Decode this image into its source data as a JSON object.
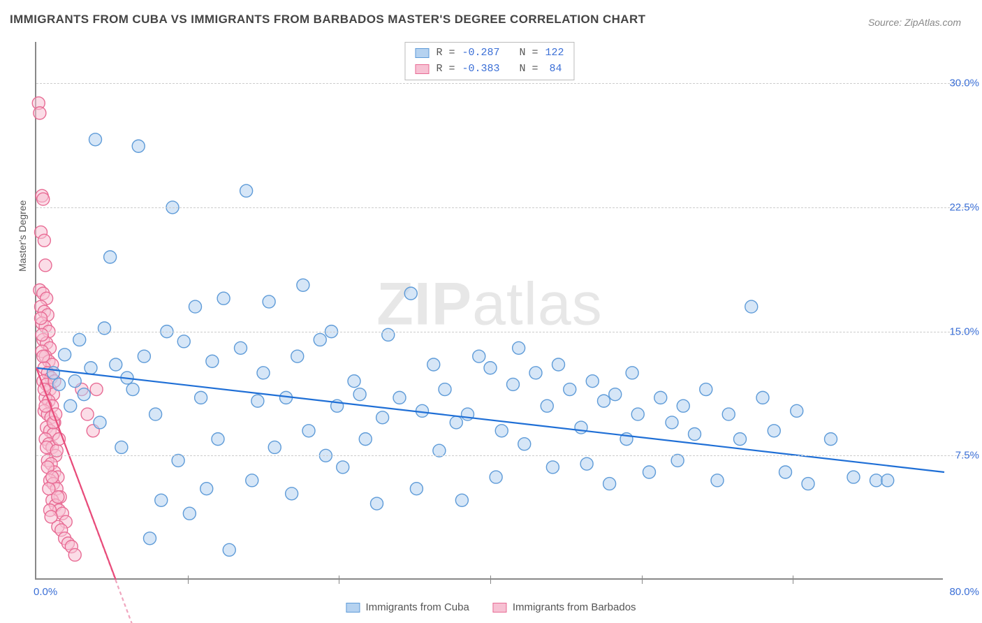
{
  "title": "IMMIGRANTS FROM CUBA VS IMMIGRANTS FROM BARBADOS MASTER'S DEGREE CORRELATION CHART",
  "source_label": "Source: ",
  "source_name": "ZipAtlas.com",
  "watermark": "ZIPatlas",
  "ylabel": "Master's Degree",
  "chart": {
    "type": "scatter",
    "xlim": [
      0,
      80
    ],
    "ylim": [
      0,
      32.5
    ],
    "x_ticks": [
      0,
      80
    ],
    "x_tick_labels": [
      "0.0%",
      "80.0%"
    ],
    "x_minor_ticks": [
      13.33,
      26.67,
      40,
      53.33,
      66.67
    ],
    "y_ticks": [
      7.5,
      15.0,
      22.5,
      30.0
    ],
    "y_tick_labels": [
      "7.5%",
      "15.0%",
      "22.5%",
      "30.0%"
    ],
    "grid_color": "#cccccc",
    "axis_color": "#888888",
    "background_color": "#ffffff",
    "label_color": "#3b6fd6",
    "marker_radius": 9,
    "marker_stroke_width": 1.4,
    "trend_line_width": 2.2
  },
  "series": [
    {
      "name": "Immigrants from Cuba",
      "fill": "#b5d2f0",
      "stroke": "#5e9bd8",
      "fill_opacity": 0.55,
      "trend": {
        "x1": 0,
        "y1": 12.8,
        "x2": 80,
        "y2": 6.5,
        "color": "#1f6fd6",
        "dash": ""
      },
      "R_label": "R = ",
      "R": "-0.287",
      "N_label": "N = ",
      "N": "122",
      "points": [
        [
          1.5,
          12.5
        ],
        [
          2.0,
          11.8
        ],
        [
          2.5,
          13.6
        ],
        [
          3.0,
          10.5
        ],
        [
          3.4,
          12.0
        ],
        [
          3.8,
          14.5
        ],
        [
          4.2,
          11.2
        ],
        [
          4.8,
          12.8
        ],
        [
          5.2,
          26.6
        ],
        [
          5.6,
          9.5
        ],
        [
          6.0,
          15.2
        ],
        [
          6.5,
          19.5
        ],
        [
          7.0,
          13.0
        ],
        [
          7.5,
          8.0
        ],
        [
          8.0,
          12.2
        ],
        [
          8.5,
          11.5
        ],
        [
          9.0,
          26.2
        ],
        [
          9.5,
          13.5
        ],
        [
          10.0,
          2.5
        ],
        [
          10.5,
          10.0
        ],
        [
          11.0,
          4.8
        ],
        [
          11.5,
          15.0
        ],
        [
          12.0,
          22.5
        ],
        [
          12.5,
          7.2
        ],
        [
          13.0,
          14.4
        ],
        [
          13.5,
          4.0
        ],
        [
          14.0,
          16.5
        ],
        [
          14.5,
          11.0
        ],
        [
          15.0,
          5.5
        ],
        [
          15.5,
          13.2
        ],
        [
          16.0,
          8.5
        ],
        [
          16.5,
          17.0
        ],
        [
          17.0,
          1.8
        ],
        [
          18.0,
          14.0
        ],
        [
          18.5,
          23.5
        ],
        [
          19.0,
          6.0
        ],
        [
          19.5,
          10.8
        ],
        [
          20.0,
          12.5
        ],
        [
          20.5,
          16.8
        ],
        [
          21.0,
          8.0
        ],
        [
          22.0,
          11.0
        ],
        [
          22.5,
          5.2
        ],
        [
          23.0,
          13.5
        ],
        [
          23.5,
          17.8
        ],
        [
          24.0,
          9.0
        ],
        [
          25.0,
          14.5
        ],
        [
          25.5,
          7.5
        ],
        [
          26.0,
          15.0
        ],
        [
          26.5,
          10.5
        ],
        [
          27.0,
          6.8
        ],
        [
          28.0,
          12.0
        ],
        [
          28.5,
          11.2
        ],
        [
          29.0,
          8.5
        ],
        [
          30.0,
          4.6
        ],
        [
          30.5,
          9.8
        ],
        [
          31.0,
          14.8
        ],
        [
          32.0,
          11.0
        ],
        [
          33.0,
          17.3
        ],
        [
          33.5,
          5.5
        ],
        [
          34.0,
          10.2
        ],
        [
          35.0,
          13.0
        ],
        [
          35.5,
          7.8
        ],
        [
          36.0,
          11.5
        ],
        [
          37.0,
          9.5
        ],
        [
          37.5,
          4.8
        ],
        [
          38.0,
          10.0
        ],
        [
          39.0,
          13.5
        ],
        [
          40.0,
          12.8
        ],
        [
          40.5,
          6.2
        ],
        [
          41.0,
          9.0
        ],
        [
          42.0,
          11.8
        ],
        [
          42.5,
          14.0
        ],
        [
          43.0,
          8.2
        ],
        [
          44.0,
          12.5
        ],
        [
          45.0,
          10.5
        ],
        [
          45.5,
          6.8
        ],
        [
          46.0,
          13.0
        ],
        [
          47.0,
          11.5
        ],
        [
          48.0,
          9.2
        ],
        [
          48.5,
          7.0
        ],
        [
          49.0,
          12.0
        ],
        [
          50.0,
          10.8
        ],
        [
          50.5,
          5.8
        ],
        [
          51.0,
          11.2
        ],
        [
          52.0,
          8.5
        ],
        [
          52.5,
          12.5
        ],
        [
          53.0,
          10.0
        ],
        [
          54.0,
          6.5
        ],
        [
          55.0,
          11.0
        ],
        [
          56.0,
          9.5
        ],
        [
          56.5,
          7.2
        ],
        [
          57.0,
          10.5
        ],
        [
          58.0,
          8.8
        ],
        [
          59.0,
          11.5
        ],
        [
          60.0,
          6.0
        ],
        [
          61.0,
          10.0
        ],
        [
          62.0,
          8.5
        ],
        [
          63.0,
          16.5
        ],
        [
          64.0,
          11.0
        ],
        [
          65.0,
          9.0
        ],
        [
          66.0,
          6.5
        ],
        [
          67.0,
          10.2
        ],
        [
          68.0,
          5.8
        ],
        [
          70.0,
          8.5
        ],
        [
          72.0,
          6.2
        ],
        [
          74.0,
          6.0
        ],
        [
          75.0,
          6.0
        ]
      ]
    },
    {
      "name": "Immigrants from Barbados",
      "fill": "#f7c1d3",
      "stroke": "#e86b94",
      "fill_opacity": 0.55,
      "trend": {
        "x1": 0,
        "y1": 12.8,
        "x2": 7,
        "y2": 0,
        "color": "#e84b7a",
        "dash": ""
      },
      "trend_ext": {
        "x1": 0,
        "y1": 12.8,
        "x2": 8.5,
        "y2": -2.8,
        "color": "#f0a5be",
        "dash": "5,4"
      },
      "R_label": "R = ",
      "R": "-0.383",
      "N_label": "N = ",
      "N": "84",
      "points": [
        [
          0.2,
          28.8
        ],
        [
          0.3,
          28.2
        ],
        [
          0.5,
          23.2
        ],
        [
          0.6,
          23.0
        ],
        [
          0.4,
          21.0
        ],
        [
          0.7,
          20.5
        ],
        [
          0.8,
          19.0
        ],
        [
          0.3,
          17.5
        ],
        [
          0.6,
          17.3
        ],
        [
          0.9,
          17.0
        ],
        [
          0.4,
          16.5
        ],
        [
          0.7,
          16.2
        ],
        [
          1.0,
          16.0
        ],
        [
          0.5,
          15.5
        ],
        [
          0.8,
          15.3
        ],
        [
          1.1,
          15.0
        ],
        [
          0.6,
          14.5
        ],
        [
          0.9,
          14.3
        ],
        [
          1.2,
          14.0
        ],
        [
          0.5,
          13.8
        ],
        [
          0.8,
          13.5
        ],
        [
          1.1,
          13.2
        ],
        [
          1.4,
          13.0
        ],
        [
          0.7,
          12.8
        ],
        [
          1.0,
          12.5
        ],
        [
          1.3,
          12.2
        ],
        [
          0.6,
          12.0
        ],
        [
          0.9,
          11.8
        ],
        [
          1.2,
          11.5
        ],
        [
          1.5,
          11.2
        ],
        [
          0.8,
          11.0
        ],
        [
          1.1,
          10.8
        ],
        [
          1.4,
          10.5
        ],
        [
          0.7,
          10.2
        ],
        [
          1.0,
          10.0
        ],
        [
          1.3,
          9.8
        ],
        [
          1.6,
          9.5
        ],
        [
          0.9,
          9.2
        ],
        [
          1.2,
          9.0
        ],
        [
          1.5,
          8.8
        ],
        [
          0.8,
          8.5
        ],
        [
          1.1,
          8.2
        ],
        [
          1.4,
          8.0
        ],
        [
          1.7,
          7.5
        ],
        [
          1.0,
          7.2
        ],
        [
          1.3,
          7.0
        ],
        [
          1.6,
          6.5
        ],
        [
          1.9,
          6.2
        ],
        [
          1.2,
          6.0
        ],
        [
          1.5,
          5.8
        ],
        [
          1.8,
          5.5
        ],
        [
          2.1,
          5.0
        ],
        [
          1.4,
          4.8
        ],
        [
          1.7,
          4.5
        ],
        [
          2.0,
          4.2
        ],
        [
          2.3,
          4.0
        ],
        [
          2.6,
          3.5
        ],
        [
          1.9,
          3.2
        ],
        [
          2.2,
          3.0
        ],
        [
          2.5,
          2.5
        ],
        [
          2.8,
          2.2
        ],
        [
          3.1,
          2.0
        ],
        [
          3.4,
          1.5
        ],
        [
          4.0,
          11.5
        ],
        [
          4.5,
          10.0
        ],
        [
          5.0,
          9.0
        ],
        [
          5.3,
          11.5
        ],
        [
          0.4,
          15.8
        ],
        [
          0.5,
          14.8
        ],
        [
          0.6,
          13.5
        ],
        [
          0.7,
          11.5
        ],
        [
          0.8,
          10.5
        ],
        [
          0.9,
          8.0
        ],
        [
          1.0,
          6.8
        ],
        [
          1.1,
          5.5
        ],
        [
          1.2,
          4.2
        ],
        [
          1.3,
          3.8
        ],
        [
          1.4,
          6.2
        ],
        [
          1.5,
          9.5
        ],
        [
          1.6,
          12.0
        ],
        [
          1.7,
          10.0
        ],
        [
          1.8,
          7.8
        ],
        [
          1.9,
          5.0
        ],
        [
          2.0,
          8.5
        ]
      ]
    }
  ]
}
